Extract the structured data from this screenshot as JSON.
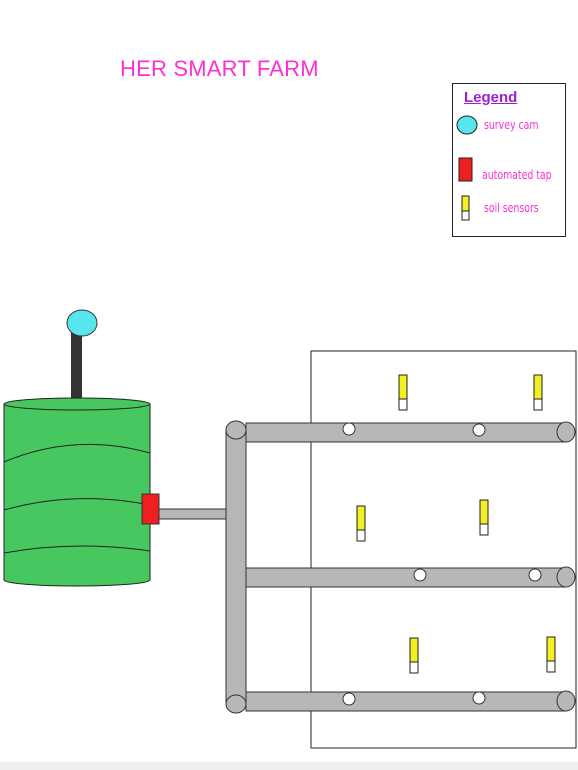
{
  "title": "HER SMART FARM",
  "legend": {
    "heading": "Legend",
    "items": [
      {
        "icon": "survey-cam-icon",
        "label": "survey cam"
      },
      {
        "icon": "automated-tap-icon",
        "label": "automated tap"
      },
      {
        "icon": "soil-sensor-icon",
        "label": "soil sensors"
      }
    ]
  },
  "colors": {
    "title": "#ff2fd1",
    "legend_heading": "#9e1fd0",
    "tank": "#47c760",
    "camera": "#58e6ee",
    "tap": "#ee1f1f",
    "pipe": "#b7b7b7",
    "sensor": "#f2ef24"
  }
}
